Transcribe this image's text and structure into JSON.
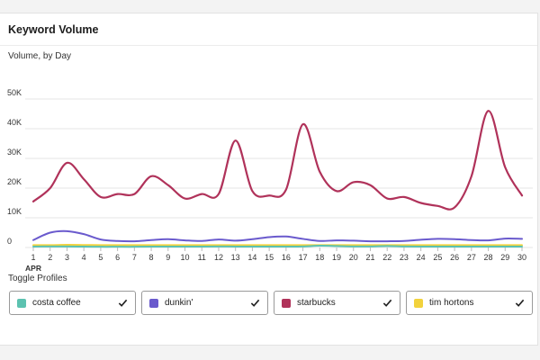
{
  "card": {
    "title": "Keyword Volume"
  },
  "chart_data": {
    "type": "line",
    "title": "",
    "subtitle": "Volume, by Day",
    "xlabel": "",
    "ylabel": "",
    "x": [
      1,
      2,
      3,
      4,
      5,
      6,
      7,
      8,
      9,
      10,
      11,
      12,
      13,
      14,
      15,
      16,
      17,
      18,
      19,
      20,
      21,
      22,
      23,
      24,
      25,
      26,
      27,
      28,
      29,
      30
    ],
    "x_month_label": "APR",
    "ylim": [
      0,
      50000
    ],
    "y_ticks": [
      0,
      10000,
      20000,
      30000,
      40000,
      50000
    ],
    "y_tick_labels": [
      "0",
      "10K",
      "20K",
      "30K",
      "40K",
      "50K"
    ],
    "grid": "horizontal",
    "legend": "none",
    "series": [
      {
        "name": "costa coffee",
        "color": "#5cc2b0",
        "values": [
          300,
          350,
          350,
          300,
          250,
          250,
          250,
          300,
          300,
          300,
          300,
          350,
          300,
          300,
          300,
          300,
          350,
          600,
          500,
          350,
          350,
          500,
          350,
          300,
          300,
          300,
          300,
          300,
          300,
          300
        ]
      },
      {
        "name": "dunkin'",
        "color": "#6a5acd",
        "values": [
          2500,
          5000,
          5500,
          4500,
          2700,
          2200,
          2100,
          2500,
          2800,
          2400,
          2200,
          2700,
          2300,
          2800,
          3500,
          3700,
          2900,
          2200,
          2400,
          2300,
          2100,
          2100,
          2200,
          2600,
          2900,
          2800,
          2500,
          2400,
          3000,
          2900
        ]
      },
      {
        "name": "starbucks",
        "color": "#b0325a",
        "values": [
          15500,
          20000,
          28500,
          23000,
          17000,
          18000,
          18000,
          24000,
          21000,
          16500,
          18000,
          18000,
          36000,
          19000,
          17500,
          19500,
          41500,
          25500,
          19000,
          22000,
          21000,
          16500,
          17000,
          15000,
          14000,
          13500,
          24000,
          46000,
          27000,
          17500
        ]
      },
      {
        "name": "tim hortons",
        "color": "#f2d23c",
        "values": [
          800,
          800,
          900,
          850,
          800,
          800,
          800,
          800,
          800,
          800,
          800,
          800,
          800,
          800,
          800,
          800,
          800,
          800,
          800,
          800,
          800,
          800,
          800,
          800,
          800,
          800,
          800,
          800,
          800,
          800
        ]
      }
    ]
  },
  "toggles": {
    "title": "Toggle Profiles",
    "items": [
      {
        "label": "costa coffee",
        "color": "#5cc2b0",
        "checked": true
      },
      {
        "label": "dunkin'",
        "color": "#6a5acd",
        "checked": true
      },
      {
        "label": "starbucks",
        "color": "#b0325a",
        "checked": true
      },
      {
        "label": "tim hortons",
        "color": "#f2d23c",
        "checked": true
      }
    ]
  }
}
